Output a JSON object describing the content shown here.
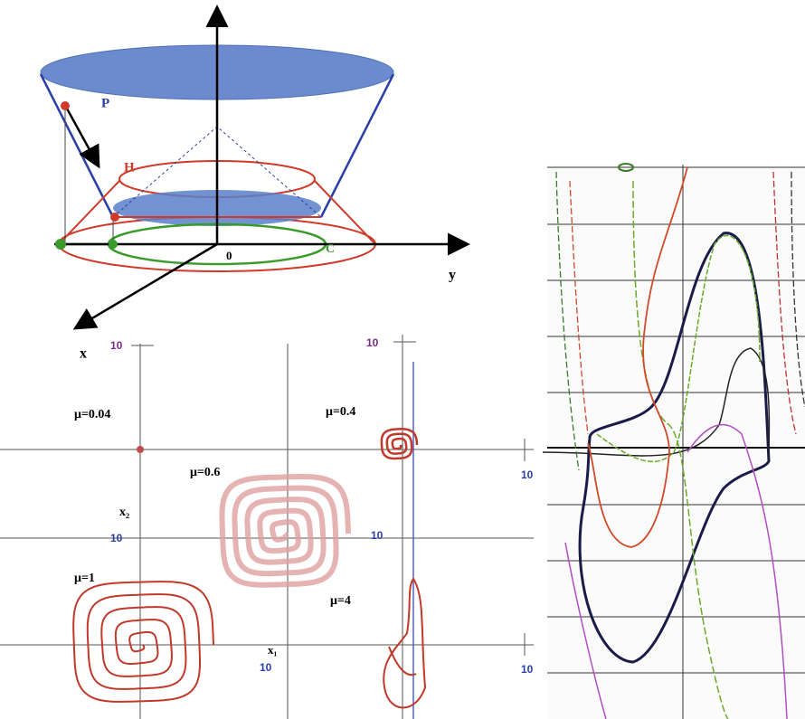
{
  "cone_diagram": {
    "p_label": "P",
    "h_label": "H",
    "c_label": "C",
    "origin_label": "0",
    "y_axis_label": "y",
    "x_axis_label": "x"
  },
  "phase_portraits": {
    "mu_labels": [
      "μ=0.04",
      "μ=0.6",
      "μ=0.4",
      "μ=1",
      "μ=4"
    ],
    "tick_labels": [
      "10",
      "10",
      "10",
      "10",
      "10",
      "10",
      "10"
    ],
    "axis_labels": [
      "x₂",
      "x₁"
    ]
  }
}
